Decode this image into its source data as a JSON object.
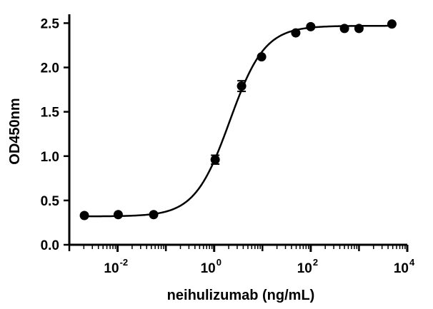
{
  "chart_data": {
    "type": "scatter",
    "title": "",
    "xlabel": "neihulizumab (ng/mL)",
    "ylabel": "OD450nm",
    "xscale": "log",
    "xlim": [
      0.001,
      10000
    ],
    "ylim": [
      0.0,
      2.6
    ],
    "grid": false,
    "legend": "none",
    "x_major_ticks": [
      {
        "value": 0.01,
        "base": "10",
        "exp": "-2"
      },
      {
        "value": 1,
        "base": "10",
        "exp": "0"
      },
      {
        "value": 100,
        "base": "10",
        "exp": "2"
      },
      {
        "value": 10000,
        "base": "10",
        "exp": "4"
      }
    ],
    "y_ticks": [
      {
        "value": 0.0,
        "label": "0.0"
      },
      {
        "value": 0.5,
        "label": "0.5"
      },
      {
        "value": 1.0,
        "label": "1.0"
      },
      {
        "value": 1.5,
        "label": "1.5"
      },
      {
        "value": 2.0,
        "label": "2.0"
      },
      {
        "value": 2.5,
        "label": "2.5"
      }
    ],
    "points": [
      {
        "x": 0.00205,
        "y": 0.33,
        "err": 0.0
      },
      {
        "x": 0.0103,
        "y": 0.34,
        "err": 0.0
      },
      {
        "x": 0.0558,
        "y": 0.34,
        "err": 0.0
      },
      {
        "x": 1.05,
        "y": 0.96,
        "err": 0.05
      },
      {
        "x": 3.7,
        "y": 1.79,
        "err": 0.06
      },
      {
        "x": 9.6,
        "y": 2.12,
        "err": 0.0
      },
      {
        "x": 49,
        "y": 2.39,
        "err": 0.0
      },
      {
        "x": 100,
        "y": 2.46,
        "err": 0.0
      },
      {
        "x": 500,
        "y": 2.44,
        "err": 0.0
      },
      {
        "x": 1000,
        "y": 2.44,
        "err": 0.0
      },
      {
        "x": 4800,
        "y": 2.49,
        "err": 0.0
      }
    ],
    "fit": {
      "model": "4PL",
      "bottom": 0.32,
      "top": 2.47,
      "ec50": 2.1,
      "hill": 1.2
    },
    "colors": {
      "marker": "#000000",
      "line": "#000000",
      "axis": "#000000"
    }
  }
}
